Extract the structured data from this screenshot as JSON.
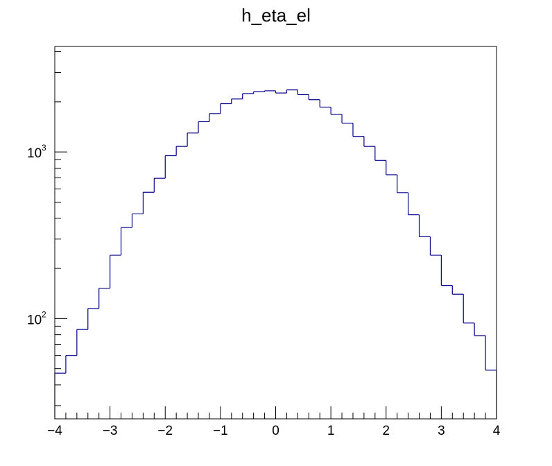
{
  "chart_data": {
    "type": "histogram",
    "title": "h_eta_el",
    "xlabel": "",
    "ylabel": "",
    "x_scale": "linear",
    "y_scale": "log",
    "xlim": [
      -4,
      4
    ],
    "ylim": [
      25,
      4300
    ],
    "grid": false,
    "legend": "none",
    "line_color": "#00008b",
    "frame_color": "#000000",
    "x_ticks": [
      "-4",
      "-3",
      "-2",
      "-1",
      "0",
      "1",
      "2",
      "3",
      "4"
    ],
    "y_tick_labels": [
      {
        "value": 100,
        "base": "10",
        "exp": "2"
      },
      {
        "value": 1000,
        "base": "10",
        "exp": "3"
      }
    ],
    "bin_edges": [
      -4.0,
      -3.8,
      -3.6,
      -3.4,
      -3.2,
      -3.0,
      -2.8,
      -2.6,
      -2.4,
      -2.2,
      -2.0,
      -1.8,
      -1.6,
      -1.4,
      -1.2,
      -1.0,
      -0.8,
      -0.6,
      -0.4,
      -0.2,
      0.0,
      0.2,
      0.4,
      0.6,
      0.8,
      1.0,
      1.2,
      1.4,
      1.6,
      1.8,
      2.0,
      2.2,
      2.4,
      2.6,
      2.8,
      3.0,
      3.2,
      3.4,
      3.6,
      3.8,
      4.0
    ],
    "values": [
      47,
      60,
      86,
      115,
      152,
      240,
      352,
      425,
      573,
      695,
      950,
      1080,
      1300,
      1520,
      1700,
      1950,
      2080,
      2240,
      2300,
      2330,
      2260,
      2360,
      2210,
      2060,
      1860,
      1680,
      1490,
      1240,
      1080,
      890,
      730,
      570,
      420,
      310,
      240,
      158,
      140,
      94,
      79,
      49
    ]
  }
}
